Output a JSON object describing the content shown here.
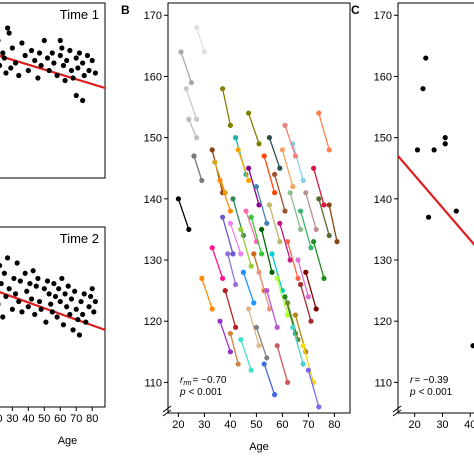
{
  "chart_data": [
    {
      "id": "A1",
      "type": "scatter",
      "title": "Time 1",
      "xlabel": "",
      "ylabel": "",
      "xlim": [
        16,
        88
      ],
      "ylim": [
        100,
        170
      ],
      "points": [
        [
          18,
          147
        ],
        [
          19,
          140
        ],
        [
          20,
          152
        ],
        [
          21,
          155
        ],
        [
          22,
          145
        ],
        [
          24,
          150
        ],
        [
          25,
          148
        ],
        [
          26,
          142
        ],
        [
          27,
          160
        ],
        [
          28,
          158
        ],
        [
          29,
          144
        ],
        [
          30,
          152
        ],
        [
          32,
          146
        ],
        [
          34,
          141
        ],
        [
          36,
          154
        ],
        [
          38,
          149
        ],
        [
          40,
          143
        ],
        [
          42,
          151
        ],
        [
          44,
          147
        ],
        [
          46,
          140
        ],
        [
          47,
          150
        ],
        [
          48,
          145
        ],
        [
          50,
          155
        ],
        [
          52,
          148
        ],
        [
          53,
          143
        ],
        [
          55,
          150
        ],
        [
          56,
          146
        ],
        [
          58,
          141
        ],
        [
          60,
          149
        ],
        [
          61,
          152
        ],
        [
          62,
          145
        ],
        [
          63,
          139
        ],
        [
          64,
          147
        ],
        [
          66,
          151
        ],
        [
          67,
          143
        ],
        [
          68,
          140
        ],
        [
          70,
          148
        ],
        [
          71,
          144
        ],
        [
          72,
          150
        ],
        [
          74,
          146
        ],
        [
          75,
          141
        ],
        [
          77,
          149
        ],
        [
          78,
          143
        ],
        [
          80,
          147
        ],
        [
          82,
          142
        ],
        [
          70,
          133
        ],
        [
          74,
          131
        ],
        [
          60,
          155
        ]
      ],
      "trend": {
        "x": [
          16,
          88
        ],
        "y": [
          150,
          136
        ]
      },
      "line_color": "#dd1c1c"
    },
    {
      "id": "A2",
      "type": "scatter",
      "title": "Time 2",
      "xlabel": "Age",
      "ylabel": "",
      "xlim": [
        16,
        88
      ],
      "ylim": [
        100,
        170
      ],
      "xticks": [
        20,
        30,
        40,
        50,
        60,
        70,
        80
      ],
      "points": [
        [
          18,
          145
        ],
        [
          20,
          150
        ],
        [
          21,
          140
        ],
        [
          22,
          155
        ],
        [
          23,
          148
        ],
        [
          24,
          135
        ],
        [
          25,
          152
        ],
        [
          26,
          143
        ],
        [
          27,
          158
        ],
        [
          28,
          146
        ],
        [
          30,
          138
        ],
        [
          31,
          150
        ],
        [
          32,
          144
        ],
        [
          33,
          156
        ],
        [
          34,
          141
        ],
        [
          35,
          149
        ],
        [
          36,
          137
        ],
        [
          38,
          152
        ],
        [
          39,
          145
        ],
        [
          40,
          139
        ],
        [
          41,
          148
        ],
        [
          42,
          142
        ],
        [
          43,
          153
        ],
        [
          44,
          136
        ],
        [
          45,
          147
        ],
        [
          46,
          150
        ],
        [
          47,
          141
        ],
        [
          48,
          138
        ],
        [
          50,
          146
        ],
        [
          51,
          133
        ],
        [
          52,
          149
        ],
        [
          53,
          144
        ],
        [
          54,
          140
        ],
        [
          55,
          137
        ],
        [
          56,
          148
        ],
        [
          57,
          143
        ],
        [
          58,
          135
        ],
        [
          59,
          146
        ],
        [
          60,
          141
        ],
        [
          61,
          150
        ],
        [
          62,
          132
        ],
        [
          63,
          144
        ],
        [
          64,
          139
        ],
        [
          65,
          147
        ],
        [
          66,
          136
        ],
        [
          67,
          142
        ],
        [
          68,
          130
        ],
        [
          69,
          145
        ],
        [
          70,
          138
        ],
        [
          71,
          134
        ],
        [
          72,
          128
        ],
        [
          73,
          141
        ],
        [
          74,
          136
        ],
        [
          75,
          144
        ],
        [
          76,
          133
        ],
        [
          78,
          139
        ],
        [
          79,
          143
        ],
        [
          80,
          146
        ],
        [
          81,
          137
        ],
        [
          82,
          141
        ]
      ],
      "trend": {
        "x": [
          16,
          88
        ],
        "y": [
          146,
          130
        ]
      },
      "line_color": "#dd1c1c"
    },
    {
      "id": "B",
      "type": "line",
      "panel_label": "B",
      "xlabel": "Age",
      "ylabel": "",
      "xlim": [
        16,
        86
      ],
      "ylim": [
        105,
        172
      ],
      "xticks": [
        20,
        30,
        40,
        50,
        60,
        70,
        80
      ],
      "yticks": [
        110,
        120,
        130,
        140,
        150,
        160,
        170
      ],
      "annotation": {
        "rrm": "r",
        "rrm_sub": "rm",
        "rrm_value": "= −0.70",
        "p_label": "p",
        "p_value": "< 0.001"
      },
      "series": [
        {
          "color": "#000000",
          "x": [
            20,
            24
          ],
          "y": [
            140,
            135
          ]
        },
        {
          "color": "#a9a9a9",
          "x": [
            21,
            25
          ],
          "y": [
            164,
            159
          ]
        },
        {
          "color": "#777777",
          "x": [
            26,
            29
          ],
          "y": [
            147,
            143
          ]
        },
        {
          "color": "#c8c8c8",
          "x": [
            23,
            27
          ],
          "y": [
            158,
            153
          ]
        },
        {
          "color": "#e0e0e0",
          "x": [
            27,
            30
          ],
          "y": [
            168,
            164
          ]
        },
        {
          "color": "#bdbdbd",
          "x": [
            24,
            27
          ],
          "y": [
            153,
            150
          ]
        },
        {
          "color": "#808000",
          "x": [
            37,
            40
          ],
          "y": [
            158,
            152
          ]
        },
        {
          "color": "#8b4513",
          "x": [
            33,
            37
          ],
          "y": [
            148,
            141
          ]
        },
        {
          "color": "#daa520",
          "x": [
            34,
            38
          ],
          "y": [
            146,
            141
          ]
        },
        {
          "color": "#ff8c00",
          "x": [
            36,
            40
          ],
          "y": [
            143,
            138
          ]
        },
        {
          "color": "#6a5acd",
          "x": [
            37,
            41
          ],
          "y": [
            137,
            131
          ]
        },
        {
          "color": "#b22222",
          "x": [
            38,
            42
          ],
          "y": [
            125,
            119
          ]
        },
        {
          "color": "#9370db",
          "x": [
            39,
            42
          ],
          "y": [
            131,
            126
          ]
        },
        {
          "color": "#cd853f",
          "x": [
            40,
            43
          ],
          "y": [
            118,
            113
          ]
        },
        {
          "color": "#2e8b57",
          "x": [
            41,
            45
          ],
          "y": [
            140,
            134
          ]
        },
        {
          "color": "#20b2aa",
          "x": [
            42,
            46
          ],
          "y": [
            150,
            144
          ]
        },
        {
          "color": "#ffa500",
          "x": [
            43,
            47
          ],
          "y": [
            148,
            143
          ]
        },
        {
          "color": "#9acd32",
          "x": [
            44,
            48
          ],
          "y": [
            135,
            129
          ]
        },
        {
          "color": "#1e90ff",
          "x": [
            45,
            49
          ],
          "y": [
            128,
            123
          ]
        },
        {
          "color": "#ff69b4",
          "x": [
            46,
            50
          ],
          "y": [
            138,
            133
          ]
        },
        {
          "color": "#8b008b",
          "x": [
            47,
            51
          ],
          "y": [
            145,
            139
          ]
        },
        {
          "color": "#deb887",
          "x": [
            47,
            51
          ],
          "y": [
            122,
            116
          ]
        },
        {
          "color": "#32cd32",
          "x": [
            48,
            52
          ],
          "y": [
            137,
            131
          ]
        },
        {
          "color": "#d2691e",
          "x": [
            49,
            53
          ],
          "y": [
            131,
            125
          ]
        },
        {
          "color": "#4682b4",
          "x": [
            50,
            54
          ],
          "y": [
            142,
            136
          ]
        },
        {
          "color": "#e9967a",
          "x": [
            51,
            55
          ],
          "y": [
            128,
            122
          ]
        },
        {
          "color": "#006400",
          "x": [
            52,
            56
          ],
          "y": [
            135,
            128
          ]
        },
        {
          "color": "#ff4500",
          "x": [
            53,
            57
          ],
          "y": [
            147,
            141
          ]
        },
        {
          "color": "#ba55d3",
          "x": [
            54,
            58
          ],
          "y": [
            125,
            119
          ]
        },
        {
          "color": "#bdb76b",
          "x": [
            55,
            59
          ],
          "y": [
            139,
            133
          ]
        },
        {
          "color": "#00ced1",
          "x": [
            56,
            60
          ],
          "y": [
            131,
            125
          ]
        },
        {
          "color": "#a0522d",
          "x": [
            57,
            61
          ],
          "y": [
            144,
            138
          ]
        },
        {
          "color": "#adff2f",
          "x": [
            58,
            62
          ],
          "y": [
            127,
            121
          ]
        },
        {
          "color": "#c71585",
          "x": [
            59,
            63
          ],
          "y": [
            136,
            130
          ]
        },
        {
          "color": "#f4a460",
          "x": [
            60,
            64
          ],
          "y": [
            148,
            142
          ]
        },
        {
          "color": "#228b22",
          "x": [
            61,
            65
          ],
          "y": [
            124,
            118
          ]
        },
        {
          "color": "#ff6347",
          "x": [
            62,
            66
          ],
          "y": [
            133,
            127
          ]
        },
        {
          "color": "#8fbc8f",
          "x": [
            63,
            67
          ],
          "y": [
            141,
            135
          ]
        },
        {
          "color": "#87ceeb",
          "x": [
            64,
            68
          ],
          "y": [
            149,
            143
          ]
        },
        {
          "color": "#b8860b",
          "x": [
            65,
            69
          ],
          "y": [
            121,
            115
          ]
        },
        {
          "color": "#da70d6",
          "x": [
            66,
            70
          ],
          "y": [
            130,
            124
          ]
        },
        {
          "color": "#3cb371",
          "x": [
            67,
            71
          ],
          "y": [
            138,
            132
          ]
        },
        {
          "color": "#ffd700",
          "x": [
            68,
            72
          ],
          "y": [
            116,
            110
          ]
        },
        {
          "color": "#800000",
          "x": [
            69,
            73
          ],
          "y": [
            128,
            122
          ]
        },
        {
          "color": "#7b68ee",
          "x": [
            70,
            74
          ],
          "y": [
            112,
            106
          ]
        },
        {
          "color": "#dc143c",
          "x": [
            72,
            76
          ],
          "y": [
            145,
            139
          ]
        },
        {
          "color": "#556b2f",
          "x": [
            74,
            78
          ],
          "y": [
            140,
            134
          ]
        },
        {
          "color": "#8b4513",
          "x": [
            78,
            81
          ],
          "y": [
            139,
            133
          ]
        },
        {
          "color": "#228b22",
          "x": [
            72,
            76
          ],
          "y": [
            133,
            127
          ]
        },
        {
          "color": "#ff1493",
          "x": [
            33,
            37
          ],
          "y": [
            132,
            127
          ]
        },
        {
          "color": "#9932cc",
          "x": [
            36,
            40
          ],
          "y": [
            120,
            115
          ]
        },
        {
          "color": "#ff8c00",
          "x": [
            29,
            33
          ],
          "y": [
            127,
            122
          ]
        },
        {
          "color": "#40e0d0",
          "x": [
            44,
            48
          ],
          "y": [
            117,
            112
          ]
        },
        {
          "color": "#808080",
          "x": [
            50,
            54
          ],
          "y": [
            119,
            114
          ]
        },
        {
          "color": "#cd5c5c",
          "x": [
            58,
            62
          ],
          "y": [
            116,
            110
          ]
        },
        {
          "color": "#6b8e23",
          "x": [
            62,
            66
          ],
          "y": [
            123,
            117
          ]
        },
        {
          "color": "#4169e1",
          "x": [
            53,
            57
          ],
          "y": [
            113,
            108
          ]
        },
        {
          "color": "#ee82ee",
          "x": [
            40,
            44
          ],
          "y": [
            136,
            131
          ]
        },
        {
          "color": "#a52a2a",
          "x": [
            67,
            71
          ],
          "y": [
            126,
            120
          ]
        },
        {
          "color": "#2f4f4f",
          "x": [
            55,
            59
          ],
          "y": [
            150,
            145
          ]
        },
        {
          "color": "#f08080",
          "x": [
            61,
            65
          ],
          "y": [
            152,
            147
          ]
        },
        {
          "color": "#bc8f8f",
          "x": [
            69,
            73
          ],
          "y": [
            141,
            135
          ]
        },
        {
          "color": "#48d1cc",
          "x": [
            64,
            68
          ],
          "y": [
            119,
            113
          ]
        },
        {
          "color": "#808000",
          "x": [
            47,
            51
          ],
          "y": [
            154,
            149
          ]
        },
        {
          "color": "#ff7f50",
          "x": [
            74,
            78
          ],
          "y": [
            154,
            148
          ]
        }
      ]
    },
    {
      "id": "C",
      "type": "scatter",
      "panel_label": "C",
      "xlabel": "",
      "ylabel": "",
      "xlim": [
        14,
        50
      ],
      "ylim": [
        105,
        172
      ],
      "xticks": [
        20,
        30,
        40
      ],
      "yticks": [
        110,
        120,
        130,
        140,
        150,
        160,
        170
      ],
      "annotation": {
        "r_label": "r",
        "r_value": "= −0.39",
        "p_label": "p",
        "p_value": "< 0.001"
      },
      "points": [
        [
          21,
          148
        ],
        [
          23,
          158
        ],
        [
          24,
          163
        ],
        [
          25,
          137
        ],
        [
          27,
          148
        ],
        [
          31,
          150
        ],
        [
          31,
          149
        ],
        [
          35,
          138
        ],
        [
          41,
          116
        ],
        [
          43,
          143
        ],
        [
          44,
          136
        ],
        [
          46,
          119
        ]
      ],
      "trend": {
        "x": [
          14,
          50
        ],
        "y": [
          147,
          128
        ]
      },
      "line_color": "#dd1c1c"
    }
  ]
}
